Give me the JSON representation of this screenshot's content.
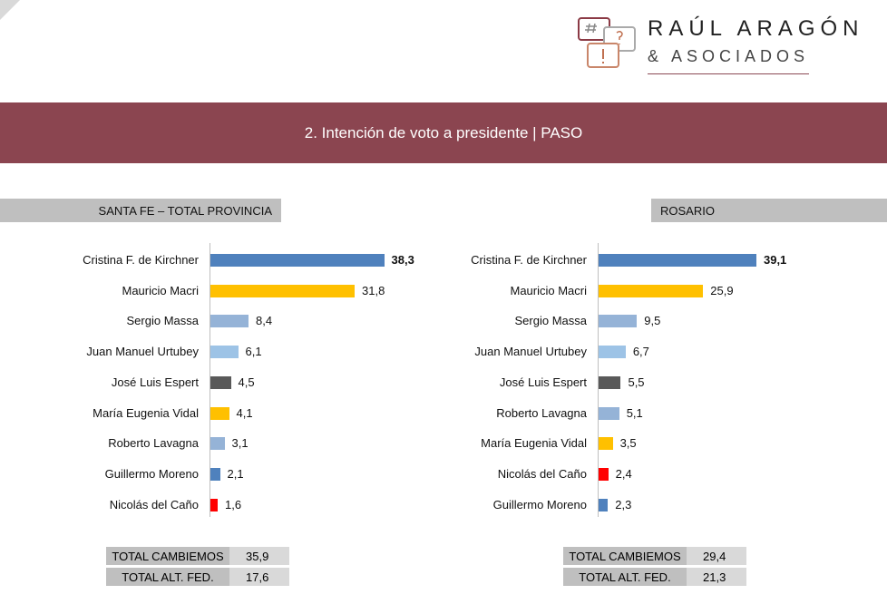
{
  "logo": {
    "line1": "RAÚL ARAGÓN",
    "line2": "& ASOCIADOS"
  },
  "title": "2. Intención de voto a presidente | PASO",
  "colors": {
    "banner": "#8b4550",
    "blue": "#4f81bd",
    "yellow": "#ffc000",
    "lightblue": "#95b3d7",
    "paleblue": "#9dc3e6",
    "gray": "#595959",
    "red": "#ff0000"
  },
  "chart_data": [
    {
      "type": "bar",
      "title": "SANTA FE – TOTAL PROVINCIA",
      "orientation": "horizontal",
      "categories": [
        "Cristina F. de Kirchner",
        "Mauricio Macri",
        "Sergio Massa",
        "Juan Manuel Urtubey",
        "José Luis Espert",
        "María Eugenia Vidal",
        "Roberto Lavagna",
        "Guillermo Moreno",
        "Nicolás del Caño"
      ],
      "values": [
        38.3,
        31.8,
        8.4,
        6.1,
        4.5,
        4.1,
        3.1,
        2.1,
        1.6
      ],
      "labels": [
        "38,3",
        "31,8",
        "8,4",
        "6,1",
        "4,5",
        "4,1",
        "3,1",
        "2,1",
        "1,6"
      ],
      "bar_colors": [
        "#4f81bd",
        "#ffc000",
        "#95b3d7",
        "#9dc3e6",
        "#595959",
        "#ffc000",
        "#95b3d7",
        "#4f81bd",
        "#ff0000"
      ],
      "totals": [
        {
          "label": "TOTAL CAMBIEMOS",
          "value": "35,9"
        },
        {
          "label": "TOTAL ALT. FED.",
          "value": "17,6"
        }
      ]
    },
    {
      "type": "bar",
      "title": "ROSARIO",
      "orientation": "horizontal",
      "categories": [
        "Cristina F. de Kirchner",
        "Mauricio Macri",
        "Sergio Massa",
        "Juan Manuel Urtubey",
        "José Luis Espert",
        "Roberto Lavagna",
        "María Eugenia Vidal",
        "Nicolás del Caño",
        "Guillermo Moreno"
      ],
      "values": [
        39.1,
        25.9,
        9.5,
        6.7,
        5.5,
        5.1,
        3.5,
        2.4,
        2.3
      ],
      "labels": [
        "39,1",
        "25,9",
        "9,5",
        "6,7",
        "5,5",
        "5,1",
        "3,5",
        "2,4",
        "2,3"
      ],
      "bar_colors": [
        "#4f81bd",
        "#ffc000",
        "#95b3d7",
        "#9dc3e6",
        "#595959",
        "#95b3d7",
        "#ffc000",
        "#ff0000",
        "#4f81bd"
      ],
      "totals": [
        {
          "label": "TOTAL CAMBIEMOS",
          "value": "29,4"
        },
        {
          "label": "TOTAL ALT. FED.",
          "value": "21,3"
        }
      ]
    }
  ]
}
